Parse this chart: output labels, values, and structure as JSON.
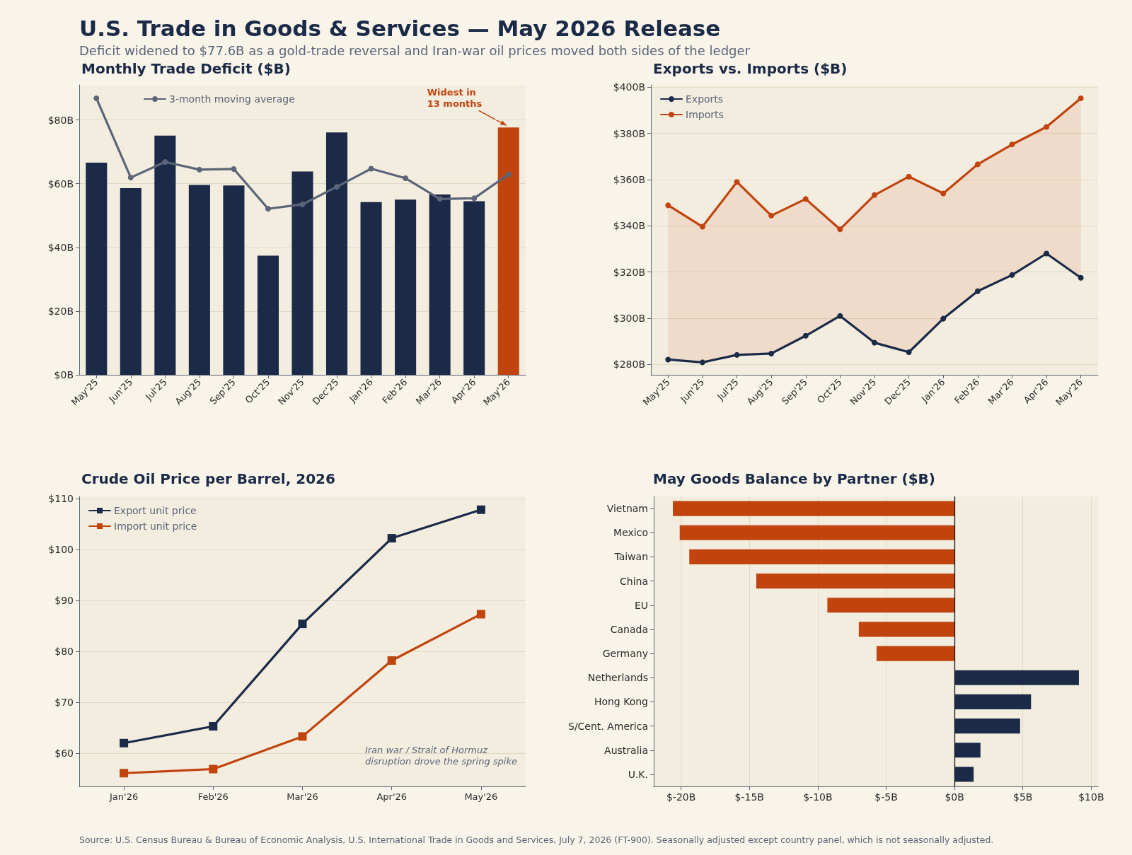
{
  "chart_data": [
    {
      "type": "other",
      "title": "U.S. Trade in Goods & Services — May 2026 Release",
      "subtitle": "Deficit widened to $77.6B as a gold-trade reversal and Iran-war oil prices moved both sides of the ledger",
      "annotations": [
        "Source: U.S. Census Bureau & Bureau of Economic Analysis, U.S. International Trade in Goods and Services, July 7, 2026 (FT-900). Seasonally adjusted except country panel, which is not seasonally adjusted."
      ]
    },
    {
      "type": "bar",
      "title": "Monthly Trade Deficit ($B)",
      "categories": [
        "May'25",
        "Jun'25",
        "Jul'25",
        "Aug'25",
        "Sep'25",
        "Oct'25",
        "Nov'25",
        "Dec'25",
        "Jan'26",
        "Feb'26",
        "Mar'26",
        "Apr'26",
        "May'26"
      ],
      "series": [
        {
          "type": "bar",
          "values": [
            66.6,
            58.6,
            75.1,
            59.6,
            59.4,
            37.4,
            63.8,
            76.1,
            54.2,
            55.0,
            56.6,
            54.5,
            77.6
          ],
          "colors": [
            "#1b2a47",
            "#1b2a47",
            "#1b2a47",
            "#1b2a47",
            "#1b2a47",
            "#1b2a47",
            "#1b2a47",
            "#1b2a47",
            "#1b2a47",
            "#1b2a47",
            "#1b2a47",
            "#1b2a47",
            "#c1440e"
          ]
        },
        {
          "type": "line",
          "name": "3-month moving average",
          "color": "#5b6577",
          "values": [
            86.8,
            61.9,
            66.8,
            64.4,
            64.6,
            52.1,
            53.5,
            59.0,
            64.7,
            61.7,
            55.2,
            55.4,
            62.9
          ]
        }
      ],
      "ylim": [
        0,
        91
      ],
      "yticks": [
        {
          "value": 0,
          "label": "$0B"
        },
        {
          "value": 20,
          "label": "$20B"
        },
        {
          "value": 40,
          "label": "$40B"
        },
        {
          "value": 60,
          "label": "$60B"
        },
        {
          "value": 80,
          "label": "$80B"
        }
      ],
      "grid": "y",
      "legend": "top left",
      "marker": "circle",
      "annotations": [
        {
          "text": "Widest in\n13 months",
          "x": "May'26",
          "y": 77.6
        }
      ]
    },
    {
      "type": "line",
      "title": "Exports vs. Imports ($B)",
      "categories": [
        "May'25",
        "Jun'25",
        "Jul'25",
        "Aug'25",
        "Sep'25",
        "Oct'25",
        "Nov'25",
        "Dec'25",
        "Jan'26",
        "Feb'26",
        "Mar'26",
        "Apr'26",
        "May'26"
      ],
      "series": [
        {
          "name": "Exports",
          "color": "#1b2a47",
          "values": [
            282.1,
            280.9,
            284.1,
            284.7,
            292.4,
            301.0,
            289.4,
            285.3,
            299.8,
            311.7,
            318.7,
            328.0,
            317.5
          ]
        },
        {
          "name": "Imports",
          "color": "#c1440e",
          "values": [
            348.9,
            339.6,
            359.0,
            344.4,
            351.6,
            338.5,
            353.3,
            361.3,
            354.0,
            366.6,
            375.2,
            382.8,
            395.2
          ],
          "lower": [
            282.1,
            280.9,
            284.1,
            284.7,
            292.4,
            301.0,
            289.4,
            285.3,
            299.8,
            311.7,
            318.7,
            328.0,
            317.5
          ],
          "upper": [
            348.9,
            339.6,
            359.0,
            344.4,
            351.6,
            338.5,
            353.3,
            361.3,
            354.0,
            366.6,
            375.2,
            382.8,
            395.2
          ]
        }
      ],
      "ylim": [
        275.5,
        401
      ],
      "yticks": [
        {
          "value": 280,
          "label": "$280B"
        },
        {
          "value": 300,
          "label": "$300B"
        },
        {
          "value": 320,
          "label": "$320B"
        },
        {
          "value": 340,
          "label": "$340B"
        },
        {
          "value": 360,
          "label": "$360B"
        },
        {
          "value": 380,
          "label": "$380B"
        },
        {
          "value": 400,
          "label": "$400B"
        }
      ],
      "grid": "y",
      "legend": "top left",
      "marker": "circle"
    },
    {
      "type": "line",
      "title": "Crude Oil Price per Barrel, 2026",
      "categories": [
        "Jan'26",
        "Feb'26",
        "Mar'26",
        "Apr'26",
        "May'26"
      ],
      "series": [
        {
          "name": "Export unit price",
          "color": "#1b2a47",
          "values": [
            62.0,
            65.3,
            85.4,
            102.2,
            107.8
          ]
        },
        {
          "name": "Import unit price",
          "color": "#c1440e",
          "values": [
            56.1,
            56.9,
            63.3,
            78.2,
            87.3
          ]
        }
      ],
      "ylim": [
        53.5,
        110.4
      ],
      "yticks": [
        {
          "value": 60,
          "label": "$60"
        },
        {
          "value": 70,
          "label": "$70"
        },
        {
          "value": 80,
          "label": "$80"
        },
        {
          "value": 90,
          "label": "$90"
        },
        {
          "value": 100,
          "label": "$100"
        },
        {
          "value": 110,
          "label": "$110"
        }
      ],
      "grid": "y",
      "legend": "top left",
      "marker": "square",
      "annotations": [
        "Iran war / Strait of Hormuz\ndisruption drove the spring spike"
      ]
    },
    {
      "type": "bar",
      "title": "May Goods Balance by Partner ($B)",
      "orientation": "horizontal",
      "categories": [
        "Vietnam",
        "Mexico",
        "Taiwan",
        "China",
        "EU",
        "Canada",
        "Germany",
        "Netherlands",
        "Hong Kong",
        "S/Cent. America",
        "Australia",
        "U.K."
      ],
      "values": [
        -20.6,
        -20.1,
        -19.4,
        -14.5,
        -9.3,
        -7.0,
        -5.7,
        9.1,
        5.6,
        4.8,
        1.9,
        1.4
      ],
      "colors": [
        "#c1440e",
        "#c1440e",
        "#c1440e",
        "#c1440e",
        "#c1440e",
        "#c1440e",
        "#c1440e",
        "#1b2a47",
        "#1b2a47",
        "#1b2a47",
        "#1b2a47",
        "#1b2a47"
      ],
      "xlim": [
        -22,
        10.5
      ],
      "xticks": [
        {
          "value": -20,
          "label": "$-20B"
        },
        {
          "value": -15,
          "label": "$-15B"
        },
        {
          "value": -10,
          "label": "$-10B"
        },
        {
          "value": -5,
          "label": "$-5B"
        },
        {
          "value": 0,
          "label": "$0B"
        },
        {
          "value": 5,
          "label": "$5B"
        },
        {
          "value": 10,
          "label": "$10B"
        }
      ],
      "grid": "x",
      "ref_lines": [
        {
          "axis": "x",
          "value": 0,
          "color": "#1a1a1a"
        }
      ]
    }
  ]
}
